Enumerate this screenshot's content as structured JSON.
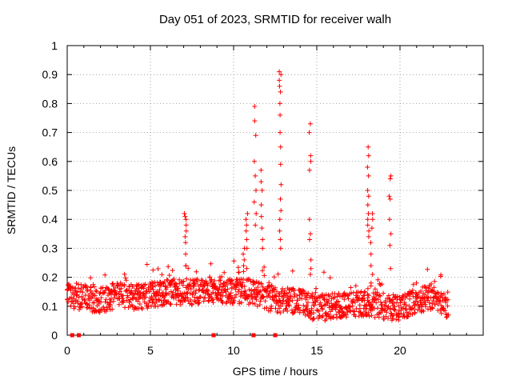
{
  "chart_data": {
    "type": "scatter",
    "title": "Day 051 of 2023, SRMTID for receiver walh",
    "xlabel": "GPS time / hours",
    "ylabel": "SRMTID / TECUs",
    "xlim": [
      0,
      25
    ],
    "ylim": [
      0,
      1
    ],
    "xticks": [
      0,
      5,
      10,
      15,
      20
    ],
    "yticks": [
      0,
      0.1,
      0.2,
      0.3,
      0.4,
      0.5,
      0.6,
      0.7,
      0.8,
      0.9,
      1
    ],
    "grid": true,
    "marker": "+",
    "color": "#ff0000",
    "baseline": [
      [
        0,
        0.14
      ],
      [
        1,
        0.13
      ],
      [
        2,
        0.12
      ],
      [
        3,
        0.14
      ],
      [
        4,
        0.13
      ],
      [
        5,
        0.14
      ],
      [
        6,
        0.15
      ],
      [
        7,
        0.15
      ],
      [
        8,
        0.15
      ],
      [
        9,
        0.16
      ],
      [
        10,
        0.15
      ],
      [
        11,
        0.15
      ],
      [
        12,
        0.13
      ],
      [
        13,
        0.12
      ],
      [
        14,
        0.12
      ],
      [
        15,
        0.09
      ],
      [
        16,
        0.1
      ],
      [
        17,
        0.11
      ],
      [
        18,
        0.11
      ],
      [
        19,
        0.1
      ],
      [
        20,
        0.09
      ],
      [
        21,
        0.12
      ],
      [
        22,
        0.13
      ],
      [
        22.9,
        0.1
      ]
    ],
    "spikes": [
      {
        "x": 7.1,
        "values": [
          0.42,
          0.41,
          0.4,
          0.38,
          0.36,
          0.34,
          0.32,
          0.28,
          0.24
        ]
      },
      {
        "x": 10.6,
        "values": [
          0.3,
          0.28,
          0.26,
          0.24,
          0.22
        ]
      },
      {
        "x": 10.8,
        "values": [
          0.42,
          0.4,
          0.38,
          0.36,
          0.33,
          0.3
        ]
      },
      {
        "x": 11.3,
        "values": [
          0.79,
          0.74,
          0.69,
          0.6,
          0.55,
          0.5,
          0.46,
          0.42,
          0.38
        ]
      },
      {
        "x": 11.7,
        "values": [
          0.57,
          0.53,
          0.5,
          0.45,
          0.41,
          0.37,
          0.33,
          0.3
        ]
      },
      {
        "x": 12.8,
        "values": [
          0.91,
          0.9,
          0.88,
          0.86,
          0.84,
          0.8,
          0.76,
          0.7,
          0.65,
          0.59,
          0.52,
          0.47,
          0.43,
          0.4,
          0.36,
          0.33,
          0.3
        ]
      },
      {
        "x": 14.6,
        "values": [
          0.73,
          0.7,
          0.62,
          0.6,
          0.57,
          0.4,
          0.35,
          0.33,
          0.26,
          0.23,
          0.21
        ]
      },
      {
        "x": 18.1,
        "values": [
          0.65,
          0.62,
          0.58,
          0.55,
          0.5,
          0.48,
          0.45,
          0.42,
          0.4,
          0.38,
          0.36,
          0.34
        ]
      },
      {
        "x": 18.3,
        "values": [
          0.42,
          0.4,
          0.37,
          0.32,
          0.28,
          0.24,
          0.21,
          0.18
        ]
      },
      {
        "x": 19.4,
        "values": [
          0.55,
          0.54,
          0.48,
          0.47,
          0.4,
          0.35,
          0.31,
          0.23
        ]
      }
    ],
    "zero_points": [
      0.3,
      0.7,
      8.8,
      11.2,
      12.5
    ]
  }
}
